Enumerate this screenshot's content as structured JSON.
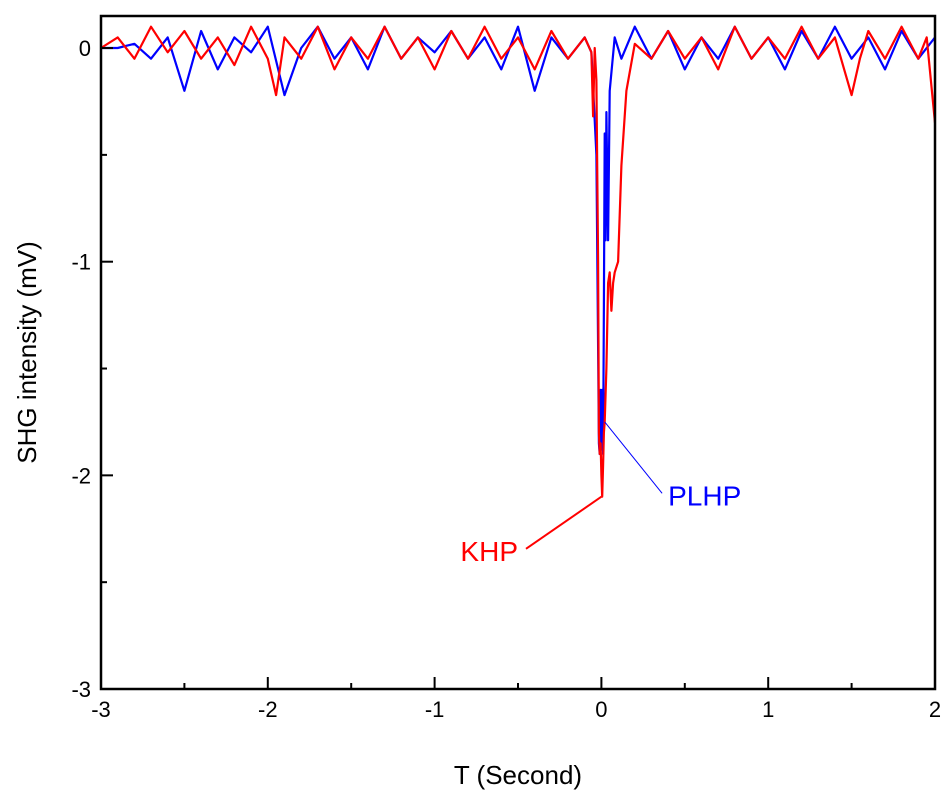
{
  "chart_data": {
    "type": "line",
    "title": "",
    "xlabel": "T (Second)",
    "ylabel": "SHG intensity (mV)",
    "xlim": [
      -3,
      2
    ],
    "ylim": [
      -3,
      0.15
    ],
    "x_ticks": [
      -3,
      -2,
      -1,
      0,
      1,
      2
    ],
    "x_tick_labels": [
      "-3",
      "-2",
      "-1",
      "0",
      "1",
      "2"
    ],
    "y_ticks": [
      -3,
      -2,
      -1,
      0
    ],
    "y_tick_labels": [
      "-3",
      "-2",
      "-1",
      "0"
    ],
    "grid": false,
    "series": [
      {
        "name": "PLHP",
        "color": "#0000ff",
        "points": [
          [
            -3.0,
            0.0
          ],
          [
            -2.9,
            0.0
          ],
          [
            -2.8,
            0.02
          ],
          [
            -2.7,
            -0.05
          ],
          [
            -2.6,
            0.05
          ],
          [
            -2.5,
            -0.2
          ],
          [
            -2.4,
            0.08
          ],
          [
            -2.3,
            -0.1
          ],
          [
            -2.2,
            0.05
          ],
          [
            -2.1,
            -0.02
          ],
          [
            -2.0,
            0.1
          ],
          [
            -1.9,
            -0.22
          ],
          [
            -1.8,
            0.0
          ],
          [
            -1.7,
            0.1
          ],
          [
            -1.6,
            -0.05
          ],
          [
            -1.5,
            0.05
          ],
          [
            -1.4,
            -0.1
          ],
          [
            -1.3,
            0.1
          ],
          [
            -1.2,
            -0.05
          ],
          [
            -1.1,
            0.05
          ],
          [
            -1.0,
            -0.02
          ],
          [
            -0.9,
            0.08
          ],
          [
            -0.8,
            -0.05
          ],
          [
            -0.7,
            0.05
          ],
          [
            -0.6,
            -0.1
          ],
          [
            -0.5,
            0.1
          ],
          [
            -0.4,
            -0.2
          ],
          [
            -0.3,
            0.05
          ],
          [
            -0.2,
            -0.05
          ],
          [
            -0.1,
            0.05
          ],
          [
            -0.06,
            -0.02
          ],
          [
            -0.03,
            -0.5
          ],
          [
            -0.02,
            -1.4
          ],
          [
            -0.015,
            -1.85
          ],
          [
            -0.01,
            -1.9
          ],
          [
            -0.005,
            -1.6
          ],
          [
            0.0,
            -1.88
          ],
          [
            0.005,
            -1.6
          ],
          [
            0.01,
            -1.9
          ],
          [
            0.015,
            -1.2
          ],
          [
            0.02,
            -0.4
          ],
          [
            0.025,
            -0.9
          ],
          [
            0.03,
            -0.3
          ],
          [
            0.04,
            -0.9
          ],
          [
            0.05,
            -0.2
          ],
          [
            0.08,
            0.05
          ],
          [
            0.12,
            -0.05
          ],
          [
            0.2,
            0.1
          ],
          [
            0.3,
            -0.05
          ],
          [
            0.4,
            0.08
          ],
          [
            0.5,
            -0.1
          ],
          [
            0.6,
            0.05
          ],
          [
            0.7,
            -0.05
          ],
          [
            0.8,
            0.1
          ],
          [
            0.9,
            -0.05
          ],
          [
            1.0,
            0.05
          ],
          [
            1.1,
            -0.1
          ],
          [
            1.2,
            0.08
          ],
          [
            1.3,
            -0.05
          ],
          [
            1.4,
            0.1
          ],
          [
            1.5,
            -0.05
          ],
          [
            1.6,
            0.05
          ],
          [
            1.7,
            -0.1
          ],
          [
            1.8,
            0.08
          ],
          [
            1.9,
            -0.05
          ],
          [
            2.0,
            0.05
          ]
        ]
      },
      {
        "name": "KHP",
        "color": "#ff0000",
        "points": [
          [
            -3.0,
            0.0
          ],
          [
            -2.9,
            0.05
          ],
          [
            -2.8,
            -0.05
          ],
          [
            -2.7,
            0.1
          ],
          [
            -2.6,
            -0.02
          ],
          [
            -2.5,
            0.08
          ],
          [
            -2.4,
            -0.05
          ],
          [
            -2.3,
            0.05
          ],
          [
            -2.2,
            -0.08
          ],
          [
            -2.1,
            0.1
          ],
          [
            -2.0,
            -0.05
          ],
          [
            -1.95,
            -0.22
          ],
          [
            -1.9,
            0.05
          ],
          [
            -1.8,
            -0.05
          ],
          [
            -1.7,
            0.1
          ],
          [
            -1.6,
            -0.1
          ],
          [
            -1.5,
            0.05
          ],
          [
            -1.4,
            -0.05
          ],
          [
            -1.3,
            0.1
          ],
          [
            -1.2,
            -0.05
          ],
          [
            -1.1,
            0.05
          ],
          [
            -1.0,
            -0.1
          ],
          [
            -0.9,
            0.08
          ],
          [
            -0.8,
            -0.05
          ],
          [
            -0.7,
            0.1
          ],
          [
            -0.6,
            -0.05
          ],
          [
            -0.5,
            0.05
          ],
          [
            -0.4,
            -0.1
          ],
          [
            -0.3,
            0.08
          ],
          [
            -0.2,
            -0.05
          ],
          [
            -0.1,
            0.05
          ],
          [
            -0.06,
            -0.02
          ],
          [
            -0.05,
            -0.32
          ],
          [
            -0.04,
            0.0
          ],
          [
            -0.03,
            -0.15
          ],
          [
            -0.02,
            -1.0
          ],
          [
            -0.015,
            -1.8
          ],
          [
            -0.01,
            -1.9
          ],
          [
            -0.005,
            -1.85
          ],
          [
            0.0,
            -2.0
          ],
          [
            0.005,
            -2.1
          ],
          [
            0.01,
            -1.95
          ],
          [
            0.015,
            -1.8
          ],
          [
            0.02,
            -1.75
          ],
          [
            0.03,
            -1.5
          ],
          [
            0.04,
            -1.1
          ],
          [
            0.05,
            -1.05
          ],
          [
            0.06,
            -1.23
          ],
          [
            0.07,
            -1.1
          ],
          [
            0.08,
            -1.05
          ],
          [
            0.1,
            -1.0
          ],
          [
            0.12,
            -0.55
          ],
          [
            0.15,
            -0.2
          ],
          [
            0.2,
            0.02
          ],
          [
            0.3,
            -0.05
          ],
          [
            0.4,
            0.08
          ],
          [
            0.5,
            -0.05
          ],
          [
            0.6,
            0.05
          ],
          [
            0.7,
            -0.1
          ],
          [
            0.8,
            0.1
          ],
          [
            0.9,
            -0.05
          ],
          [
            1.0,
            0.05
          ],
          [
            1.1,
            -0.05
          ],
          [
            1.2,
            0.1
          ],
          [
            1.3,
            -0.05
          ],
          [
            1.4,
            0.05
          ],
          [
            1.5,
            -0.22
          ],
          [
            1.55,
            -0.05
          ],
          [
            1.6,
            0.08
          ],
          [
            1.7,
            -0.05
          ],
          [
            1.8,
            0.1
          ],
          [
            1.9,
            -0.05
          ],
          [
            1.95,
            0.05
          ],
          [
            2.0,
            -0.35
          ]
        ]
      }
    ],
    "annotations": [
      {
        "text": "PLHP",
        "color": "#0000ff",
        "x": 0.4,
        "y": -2.14,
        "target_x": 0.02,
        "target_y": -1.75,
        "anchor": "start"
      },
      {
        "text": "KHP",
        "color": "#ff0000",
        "x": -0.5,
        "y": -2.4,
        "target_x": 0.0,
        "target_y": -2.1,
        "anchor": "end"
      }
    ]
  }
}
